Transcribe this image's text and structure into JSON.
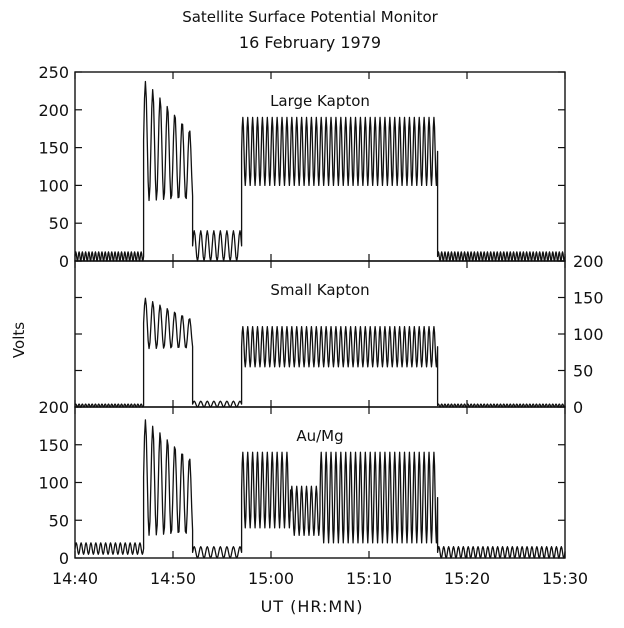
{
  "chart_data": {
    "type": "line",
    "title": "Satellite Surface Potential Monitor",
    "subtitle": "16 February 1979",
    "xlabel": "UT (HR:MN)",
    "ylabel": "Volts",
    "x_ticks": [
      "14:40",
      "14:50",
      "15:00",
      "15:10",
      "15:20",
      "15:30"
    ],
    "x_range": [
      "14:40",
      "15:30"
    ],
    "panels": [
      {
        "name": "Large Kapton",
        "ylim": [
          0,
          250
        ],
        "y_ticks": [
          0,
          50,
          100,
          150,
          200,
          250
        ],
        "y_axis_side": "left",
        "segments": [
          {
            "start": "14:40",
            "end": "14:47",
            "min": 0,
            "max": 12,
            "osc_s": 20
          },
          {
            "start": "14:47",
            "end": "14:52",
            "min": 80,
            "max": 240,
            "decay_to": 170,
            "osc_s": 45
          },
          {
            "start": "14:52",
            "end": "14:57",
            "min": 0,
            "max": 40,
            "osc_s": 40
          },
          {
            "start": "14:57",
            "end": "15:17",
            "min": 100,
            "max": 190,
            "osc_s": 30
          },
          {
            "start": "15:17",
            "end": "15:30",
            "min": 0,
            "max": 12,
            "osc_s": 20
          }
        ]
      },
      {
        "name": "Small Kapton",
        "ylim": [
          0,
          200
        ],
        "y_ticks": [
          0,
          50,
          100,
          150,
          200
        ],
        "y_axis_side": "right",
        "segments": [
          {
            "start": "14:40",
            "end": "14:47",
            "min": 0,
            "max": 4,
            "osc_s": 20
          },
          {
            "start": "14:47",
            "end": "14:52",
            "min": 80,
            "max": 150,
            "decay_to": 120,
            "osc_s": 45
          },
          {
            "start": "14:52",
            "end": "14:57",
            "min": 0,
            "max": 8,
            "osc_s": 40
          },
          {
            "start": "14:57",
            "end": "15:17",
            "min": 55,
            "max": 110,
            "osc_s": 30
          },
          {
            "start": "15:17",
            "end": "15:30",
            "min": 0,
            "max": 4,
            "osc_s": 20
          }
        ]
      },
      {
        "name": "Au/Mg",
        "ylim": [
          0,
          200
        ],
        "y_ticks": [
          0,
          50,
          100,
          150,
          200
        ],
        "y_axis_side": "left",
        "segments": [
          {
            "start": "14:40",
            "end": "14:47",
            "min": 5,
            "max": 20,
            "osc_s": 30
          },
          {
            "start": "14:47",
            "end": "14:52",
            "min": 30,
            "max": 185,
            "decay_to": 130,
            "osc_s": 45
          },
          {
            "start": "14:52",
            "end": "14:57",
            "min": 0,
            "max": 15,
            "osc_s": 40
          },
          {
            "start": "14:57",
            "end": "15:02",
            "min": 40,
            "max": 140,
            "osc_s": 30
          },
          {
            "start": "15:02",
            "end": "15:05",
            "min": 30,
            "max": 95,
            "osc_s": 30
          },
          {
            "start": "15:05",
            "end": "15:17",
            "min": 20,
            "max": 140,
            "osc_s": 30
          },
          {
            "start": "15:17",
            "end": "15:30",
            "min": 0,
            "max": 15,
            "osc_s": 30
          }
        ]
      }
    ]
  }
}
